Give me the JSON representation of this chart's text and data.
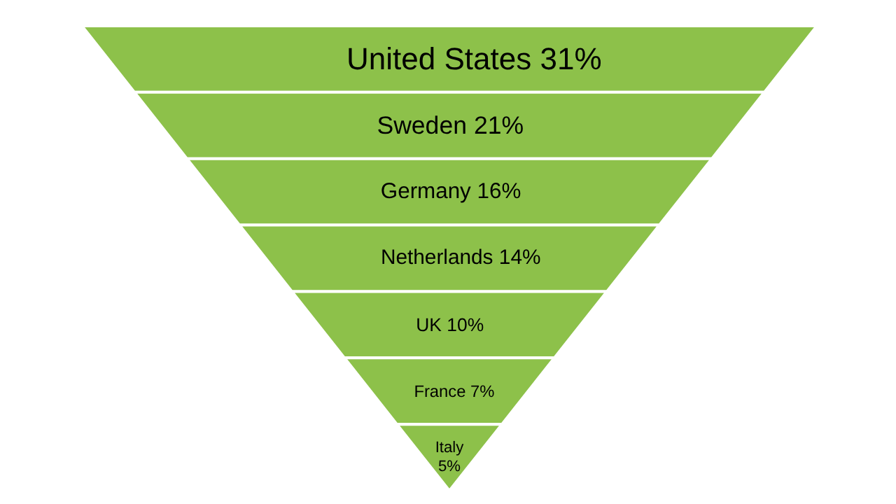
{
  "chart_data": {
    "type": "other",
    "categories": [
      "United States",
      "Sweden",
      "Germany",
      "Netherlands",
      "UK",
      "France",
      "Italy"
    ],
    "values": [
      31,
      21,
      16,
      14,
      10,
      7,
      5
    ],
    "value_labels": [
      "31%",
      "21%",
      "16%",
      "14%",
      "10%",
      "7%",
      "5%"
    ],
    "color": "#8dc14a"
  }
}
